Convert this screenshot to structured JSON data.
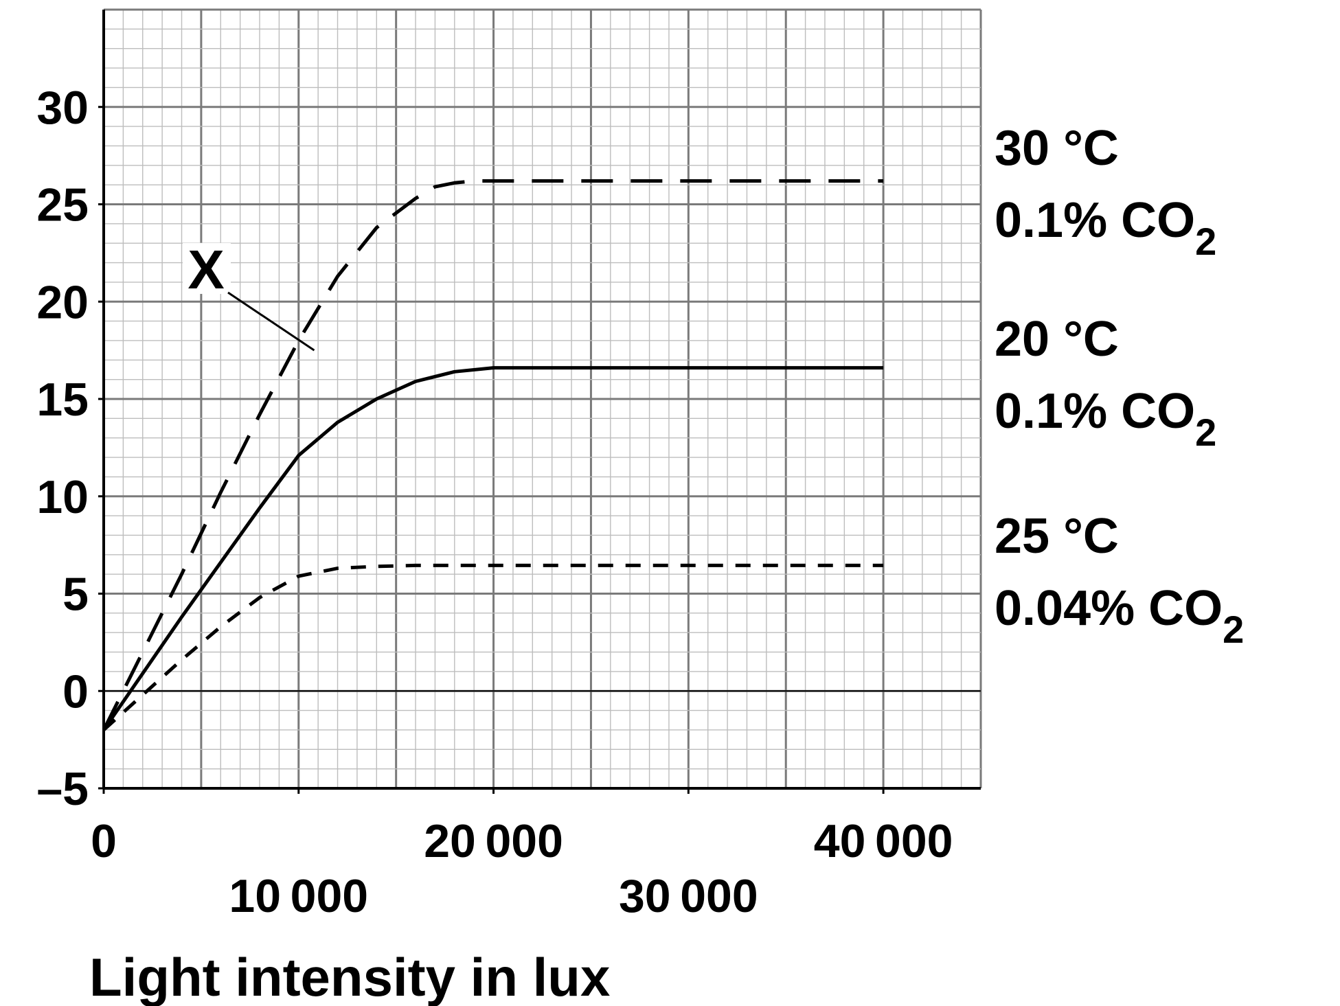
{
  "chart_data": {
    "type": "line",
    "title": "",
    "xlabel": "Light intensity in lux",
    "ylabel": "",
    "xlim": [
      0,
      45000
    ],
    "ylim": [
      -5,
      35
    ],
    "grid": true,
    "x_ticks": [
      0,
      10000,
      20000,
      30000,
      40000
    ],
    "x_tick_labels": [
      "0",
      "10 000",
      "20 000",
      "30 000",
      "40 000"
    ],
    "y_ticks": [
      -5,
      0,
      5,
      10,
      15,
      20,
      25,
      30
    ],
    "y_tick_labels": [
      "–5",
      "0",
      "5",
      "10",
      "15",
      "20",
      "25",
      "30"
    ],
    "series": [
      {
        "temp": "30 °C",
        "co2": "0.1% CO",
        "co2_sub": "2",
        "style": "long-dash",
        "x": [
          0,
          2000,
          4000,
          6000,
          8000,
          10000,
          12000,
          14000,
          16000,
          17000,
          18000,
          19000,
          20000,
          40000
        ],
        "values": [
          -2,
          2,
          6,
          10.2,
          14.2,
          18,
          21.3,
          23.8,
          25.3,
          25.9,
          26.1,
          26.2,
          26.2,
          26.2
        ]
      },
      {
        "temp": "20 °C",
        "co2": "0.1% CO",
        "co2_sub": "2",
        "style": "solid",
        "x": [
          0,
          2000,
          4000,
          6000,
          8000,
          10000,
          12000,
          14000,
          16000,
          18000,
          20000,
          40000
        ],
        "values": [
          -2,
          0.9,
          3.8,
          6.6,
          9.4,
          12.1,
          13.8,
          15,
          15.9,
          16.4,
          16.6,
          16.6
        ]
      },
      {
        "temp": "25 °C",
        "co2": "0.04% CO",
        "co2_sub": "2",
        "style": "short-dash",
        "x": [
          0,
          2000,
          4000,
          6000,
          8000,
          10000,
          12000,
          14000,
          16000,
          20000,
          40000
        ],
        "values": [
          -2,
          -0.2,
          1.6,
          3.3,
          4.8,
          5.9,
          6.3,
          6.4,
          6.45,
          6.45,
          6.45
        ]
      }
    ],
    "annotations": [
      {
        "text": "X",
        "points_to_x": 10800,
        "points_to_y": 17.5
      }
    ]
  }
}
